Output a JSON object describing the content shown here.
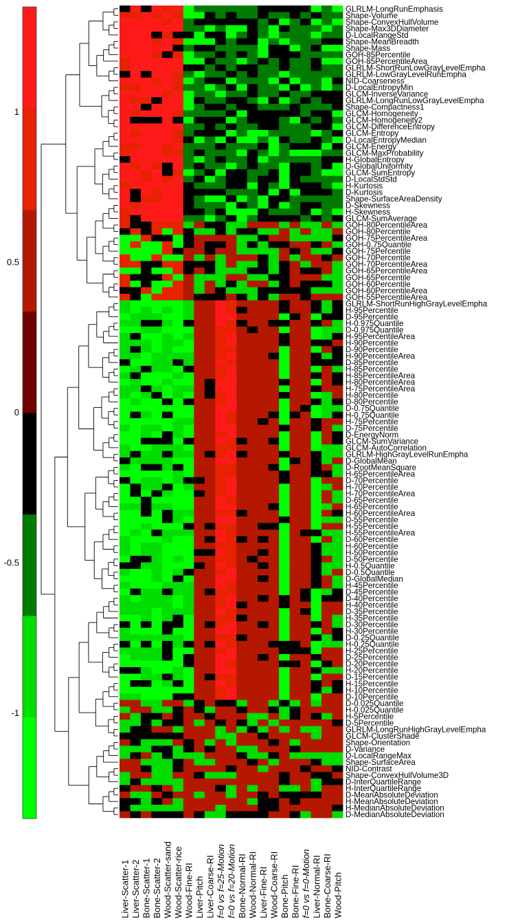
{
  "chart_data": {
    "type": "heatmap",
    "title": "",
    "colorbar": {
      "ticks": [
        1,
        0.5,
        0,
        -0.5,
        -1
      ],
      "tick_labels": [
        "1",
        "0.5",
        "0",
        "-0.5",
        "-1"
      ],
      "range": [
        -1.35,
        1.35
      ],
      "colors": [
        "#00ff00",
        "#00dd00",
        "#007a00",
        "#000000",
        "#6e0000",
        "#b41800",
        "#e62200",
        "#ff1a1a"
      ]
    },
    "columns": [
      "Liver-Scatter-1",
      "Liver-Scatter-2",
      "Bone-Scatter-1",
      "Bone-Scatter-2",
      "Wood-Scatter-sand",
      "Wood-Scatter-rice",
      "Wood-Fine-RI",
      "Liver-Pitch",
      "Liver-Coarse-RI",
      "f=0 vs f=25-Motion",
      "f=0 vs f=20-Motion",
      "Bone-Normal-RI",
      "Wood-Normal-RI",
      "Liver-Fine-RI",
      "Wood-Coarse-RI",
      "Bone-Pitch",
      "Bone-Fine-RI",
      "f=0 vs f=0-Motion",
      "Liver-Normal-RI",
      "Bone-Coarse-RI",
      "Wood-Pitch"
    ],
    "rows": [
      "GLRLM-LongRunEmphasis",
      "Shape-Volume",
      "Shape-ConvexHullVolume",
      "Shape-Max3DDiameter",
      "D-LocalRangeStd",
      "Shape-MeanBreadth",
      "Shape-Mass",
      "GOH-85Percentile",
      "GOH-85PercentileArea",
      "GLRLM-ShortRunLowGrayLevelEmpha",
      "GLRLM-LowGrayLevelRunEmpha",
      "NID-Coarseness",
      "D-LocalEntropyMin",
      "GLCM-InverseVariance",
      "GLRLM-LongRunLowGrayLevelEmpha",
      "Shape-Compactness1",
      "GLCM-Homogeneity",
      "GLCM-Homogeneity2",
      "GLCM-DifferenceEntropy",
      "GLCM-Entropy",
      "D-LocalEntropyMedian",
      "GLCM-Energy",
      "GLCM-MaxProbability",
      "H-GlobalEntropy",
      "D-GlobalUniformity",
      "GLCM-SumEntropy",
      "D-LocalStdStd",
      "H-Kurtosis",
      "D-Kurtosis",
      "Shape-SurfaceAreaDensity",
      "D-Skewness",
      "H-Skewness",
      "GLCM-SumAverage",
      "GOH-80PercentileArea",
      "GOH-80Percentile",
      "GOH-75PercentileArea",
      "GOH-0.75Quantile",
      "GOH-75Percentile",
      "GOH-70Percentile",
      "GOH-70PercentileArea",
      "GOH-65PercentileArea",
      "GOH-65Percentile",
      "GOH-60Percentile",
      "GOH-60PercentileArea",
      "GOH-55PercentileArea",
      "GLRLM-ShortRunHighGrayLevelEmpha",
      "H-95Percentile",
      "D-95Percentile",
      "H-0.975Quantile",
      "D-0.975Quantile",
      "H-95PercentileArea",
      "H-90Percentile",
      "D-90Percentile",
      "H-90PercentileArea",
      "D-85Percentile",
      "H-85Percentile",
      "H-85PercentileArea",
      "H-80PercentileArea",
      "H-75PercentileArea",
      "H-80Percentile",
      "D-80Percentile",
      "D-0.75Quantile",
      "H-0.75Quantile",
      "H-75Percentile",
      "D-75Percentile",
      "D-EnergyNorm",
      "GLCM-SumVariance",
      "GLCM-AutoCorrelation",
      "GLRLM-HighGrayLevelRunEmpha",
      "D-GlobalMean",
      "D-RootMeanSquare",
      "H-65PercentileArea",
      "D-70Percentile",
      "H-70Percentile",
      "H-70PercentileArea",
      "D-65Percentile",
      "H-65Percentile",
      "H-60PercentileArea",
      "D-55Percentile",
      "H-55Percentile",
      "H-55PercentileArea",
      "D-60Percentile",
      "H-60Percentile",
      "H-50Percentile",
      "D-50Percentile",
      "H-0.5Quantile",
      "D-0.5Quantile",
      "D-GlobalMedian",
      "H-45Percentile",
      "D-45Percentile",
      "D-40Percentile",
      "H-40Percentile",
      "D-35Percentile",
      "H-35Percentile",
      "D-30Percentile",
      "H-30Percentile",
      "D-0.25Quantile",
      "H-0.25Quantile",
      "H-25Percentile",
      "D-25Percentile",
      "D-20Percentile",
      "H-20Percentile",
      "D-15Percentile",
      "H-15Percentile",
      "H-10Percentile",
      "D-10Percentile",
      "D-0.025Quantile",
      "H-0.025Quantile",
      "H-5Percentile",
      "D-5Percentile",
      "GLRLM-LongRunHighGrayLevelEmpha",
      "GLCM-ClusterShade",
      "Shape-Orientation",
      "D-Variance",
      "D-LocalRangeMax",
      "Shape-SurfaceArea",
      "NID-Contrast",
      "Shape-ConvexHullVolume3D",
      "D-InterQuartileRange",
      "H-InterQuartileRange",
      "D-MeanAbsoluteDeviation",
      "H-MeanAbsoluteDeviation",
      "H-MedianAbsoluteDeviation",
      "D-MedianAbsoluteDeviation"
    ],
    "row_groups": [
      {
        "rows": [
          0,
          45
        ],
        "cols": [
          [
            0.6,
            0.5,
            0.8,
            0.9,
            0.8,
            0.7,
            0.0,
            -0.2,
            0.0,
            0.1,
            0.0,
            0.0,
            -0.3,
            -0.2,
            -0.2,
            -0.2,
            -0.3,
            -0.3,
            -0.2,
            -0.3,
            -0.3
          ],
          [
            0.8,
            0.6,
            0.9,
            0.9,
            0.8,
            0.6,
            0.0,
            -0.2,
            0.1,
            0.1,
            0.1,
            0.0,
            -0.2,
            -0.2,
            -0.2,
            -0.3,
            -0.3,
            -0.3,
            -0.2,
            -0.2,
            -0.3
          ],
          [
            0.9,
            0.9,
            0.9,
            0.7,
            0.6,
            0.5,
            -0.4,
            -0.5,
            -0.3,
            -0.2,
            -0.2,
            -0.2,
            -0.5,
            -0.5,
            -0.4,
            -0.5,
            -0.6,
            -0.5,
            -0.4,
            -0.4,
            -0.4
          ]
        ]
      },
      {
        "rows": [
          46,
          120
        ],
        "cols": [
          [
            -0.1,
            -0.7,
            -0.9,
            -0.9,
            -0.8,
            -0.6,
            -0.5,
            -0.2,
            0.4,
            0.7,
            0.6,
            0.4,
            0.4,
            0.4,
            0.4,
            -0.6,
            0.4,
            0.4,
            -0.5,
            -0.6,
            -0.7
          ]
        ]
      }
    ],
    "dendrogram_order": "rows clustered hierarchically; leaf order matches rows list"
  }
}
